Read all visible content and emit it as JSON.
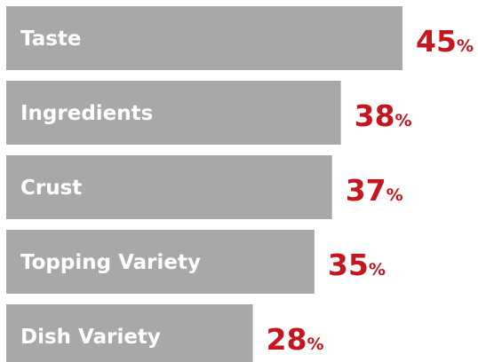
{
  "chart_data": {
    "type": "bar",
    "orientation": "horizontal",
    "categories": [
      "Taste",
      "Ingredients",
      "Crust",
      "Topping Variety",
      "Dish Variety"
    ],
    "values": [
      45,
      38,
      37,
      35,
      28
    ],
    "value_suffix": "%",
    "title": "",
    "xlabel": "",
    "ylabel": "",
    "grid": false,
    "legend": "none"
  },
  "colors": {
    "bar": "#a7a8aa",
    "label": "#ffffff",
    "value": "#c4161c"
  }
}
